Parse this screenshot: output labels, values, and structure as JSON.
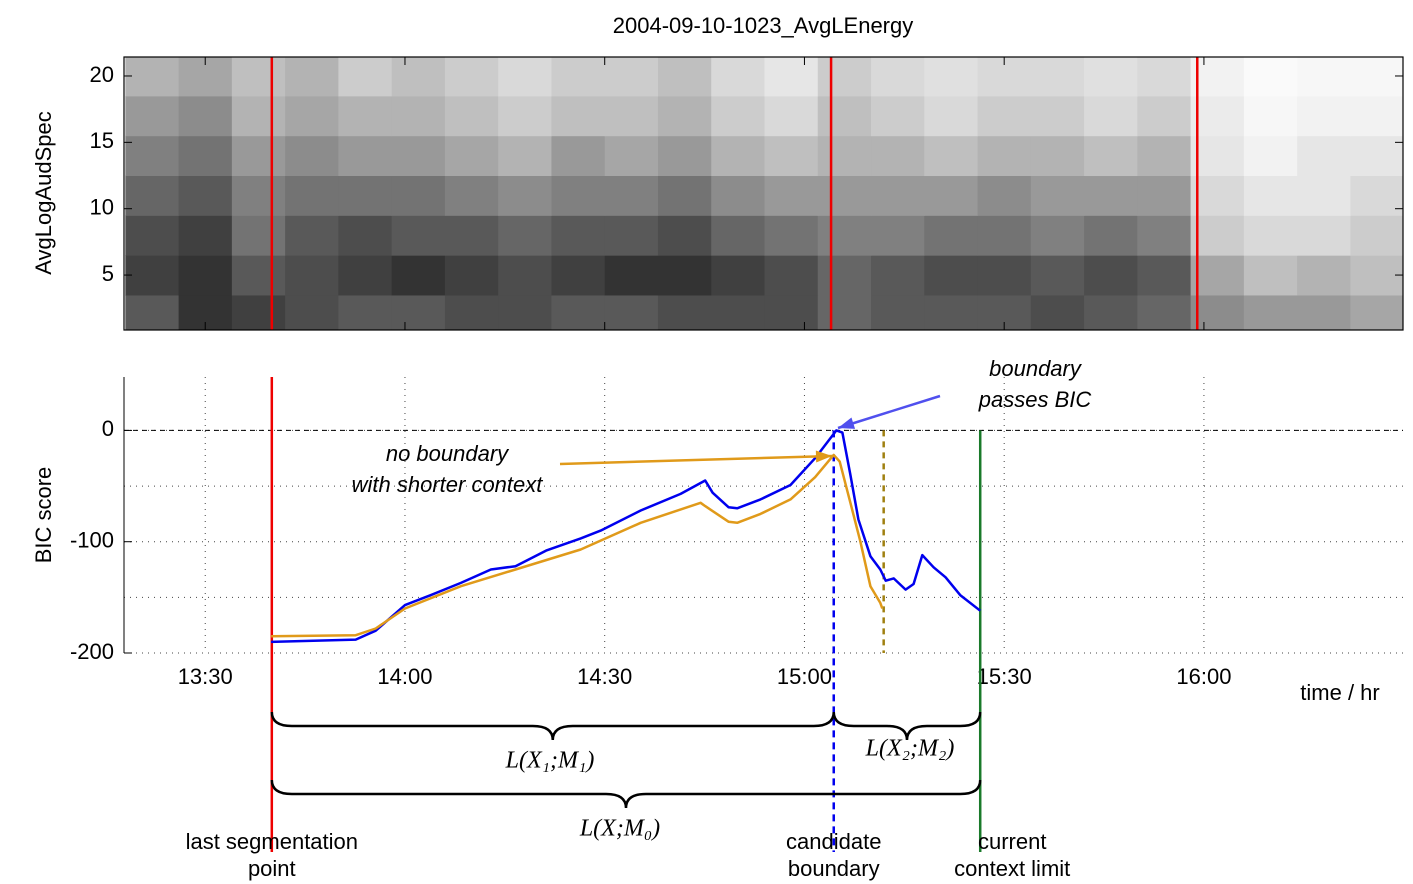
{
  "chart_data": [
    {
      "type": "heatmap",
      "title": "2004-09-10-1023_AvgLEnergy",
      "ylabel": "AvgLogAudSpec",
      "colormap": "gray",
      "x": [
        802,
        810,
        818,
        826,
        834,
        842,
        850,
        858,
        866,
        874,
        882,
        890,
        898,
        906,
        914,
        922,
        930,
        938,
        946,
        954,
        962,
        970,
        978,
        986
      ],
      "y": [
        2,
        5,
        8,
        11,
        14,
        17,
        20
      ],
      "z": [
        [
          0.35,
          0.2,
          0.25,
          0.3,
          0.35,
          0.35,
          0.3,
          0.3,
          0.35,
          0.35,
          0.3,
          0.3,
          0.3,
          0.4,
          0.35,
          0.35,
          0.35,
          0.3,
          0.35,
          0.4,
          0.55,
          0.6,
          0.6,
          0.65
        ],
        [
          0.25,
          0.2,
          0.35,
          0.3,
          0.25,
          0.2,
          0.25,
          0.3,
          0.25,
          0.2,
          0.2,
          0.25,
          0.3,
          0.4,
          0.35,
          0.3,
          0.3,
          0.35,
          0.3,
          0.35,
          0.65,
          0.75,
          0.7,
          0.75
        ],
        [
          0.3,
          0.25,
          0.45,
          0.35,
          0.3,
          0.35,
          0.35,
          0.4,
          0.35,
          0.35,
          0.3,
          0.4,
          0.45,
          0.5,
          0.5,
          0.45,
          0.45,
          0.5,
          0.45,
          0.5,
          0.8,
          0.85,
          0.85,
          0.8
        ],
        [
          0.4,
          0.35,
          0.5,
          0.45,
          0.45,
          0.45,
          0.5,
          0.55,
          0.5,
          0.5,
          0.45,
          0.55,
          0.6,
          0.6,
          0.6,
          0.6,
          0.55,
          0.6,
          0.6,
          0.6,
          0.85,
          0.9,
          0.9,
          0.85
        ],
        [
          0.5,
          0.45,
          0.6,
          0.55,
          0.6,
          0.6,
          0.65,
          0.7,
          0.6,
          0.65,
          0.6,
          0.7,
          0.75,
          0.7,
          0.7,
          0.75,
          0.7,
          0.7,
          0.75,
          0.7,
          0.9,
          0.95,
          0.9,
          0.9
        ],
        [
          0.6,
          0.55,
          0.7,
          0.65,
          0.7,
          0.7,
          0.75,
          0.8,
          0.75,
          0.75,
          0.7,
          0.8,
          0.85,
          0.75,
          0.8,
          0.85,
          0.8,
          0.8,
          0.85,
          0.8,
          0.92,
          0.97,
          0.95,
          0.95
        ],
        [
          0.7,
          0.65,
          0.75,
          0.7,
          0.8,
          0.75,
          0.8,
          0.85,
          0.8,
          0.8,
          0.75,
          0.85,
          0.9,
          0.8,
          0.85,
          0.88,
          0.85,
          0.85,
          0.88,
          0.85,
          0.95,
          0.98,
          0.97,
          0.97
        ]
      ],
      "xlim": [
        797.8,
        989.9
      ],
      "xticks": [
        810,
        840,
        870,
        900,
        930,
        960
      ],
      "ylim": [
        0.86,
        21.43
      ],
      "yticks": [
        5,
        10,
        15,
        20
      ],
      "vlines": [
        820,
        904,
        959
      ],
      "vline_color": "#ee0000"
    },
    {
      "type": "line",
      "ylabel": "BIC score",
      "xlabel": "time / hr",
      "xlim": [
        797.8,
        989.9
      ],
      "xticks": [
        {
          "value": 810,
          "label": "13:30"
        },
        {
          "value": 840,
          "label": "14:00"
        },
        {
          "value": 870,
          "label": "14:30"
        },
        {
          "value": 900,
          "label": "15:00"
        },
        {
          "value": 930,
          "label": "15:30"
        },
        {
          "value": 960,
          "label": "16:00"
        }
      ],
      "ylim": [
        -200,
        48
      ],
      "yticks": [
        -200,
        -100,
        0
      ],
      "minor_yticks": [
        -150,
        -50
      ],
      "grid": true,
      "reference_y": 0,
      "series": [
        {
          "color": "#0000ee",
          "x": [
            819.9,
            832.6,
            835.6,
            840,
            843.9,
            848.4,
            852.9,
            856.6,
            861.2,
            866.4,
            869.4,
            875.4,
            881.4,
            885.1,
            886.2,
            888.6,
            889.9,
            893.4,
            897.9,
            901.6,
            904.8,
            905.7,
            906.9,
            908.1,
            909.9,
            911.4,
            912.2,
            913.4,
            915.2,
            916.4,
            917.7,
            919.4,
            921.2,
            923.4,
            926.4
          ],
          "values": [
            -190,
            -188,
            -180,
            -157,
            -148,
            -137,
            -125,
            -122,
            -108,
            -97,
            -90,
            -72,
            -57,
            -45,
            -56,
            -69,
            -70,
            -62,
            -49,
            -25,
            0,
            -2,
            -40,
            -80,
            -113,
            -125,
            -135,
            -133,
            -143,
            -138,
            -112,
            -123,
            -132,
            -148,
            -162
          ]
        },
        {
          "color": "#e09a1a",
          "x": [
            819.9,
            832.6,
            835.6,
            840,
            848.4,
            856.6,
            866.4,
            875.4,
            884.4,
            885.1,
            888.6,
            889.9,
            893.4,
            897.9,
            901.6,
            904.4,
            905.3,
            906.9,
            908.4,
            909.9,
            911.4,
            911.7
          ],
          "values": [
            -185,
            -184,
            -178,
            -160,
            -140,
            -125,
            -107,
            -83,
            -65,
            -68,
            -82,
            -83,
            -75,
            -62,
            -42,
            -22,
            -28,
            -65,
            -100,
            -140,
            -155,
            -160
          ]
        }
      ],
      "vertical_lines": [
        {
          "x": 820,
          "y_start": 48,
          "color": "#ee0000",
          "style": "solid",
          "label": [
            "last segmentation",
            "point"
          ]
        },
        {
          "x": 904.4,
          "y_start": 0,
          "color": "#0000ee",
          "style": "dashed",
          "label": [
            "candidate",
            "boundary"
          ]
        },
        {
          "x": 926.4,
          "y_start": 0,
          "color": "#1a7a2a",
          "style": "solid",
          "label": [
            "current",
            "context limit"
          ]
        },
        {
          "x": 911.9,
          "y_start": 0,
          "color": "#a08010",
          "style": "dashed"
        }
      ],
      "annotations": [
        {
          "lines": [
            "boundary",
            "passes BIC"
          ],
          "color": "#5050ee"
        },
        {
          "lines": [
            "no boundary",
            "with shorter context"
          ],
          "color": "#e09a1a"
        }
      ],
      "braces": [
        {
          "label": "L(X₁;M₁)",
          "from": 820,
          "to": 904.4
        },
        {
          "label": "L(X₂;M₂)",
          "from": 904.4,
          "to": 926.4
        },
        {
          "label": "L(X;M₀)",
          "from": 820,
          "to": 926.4
        }
      ]
    }
  ]
}
